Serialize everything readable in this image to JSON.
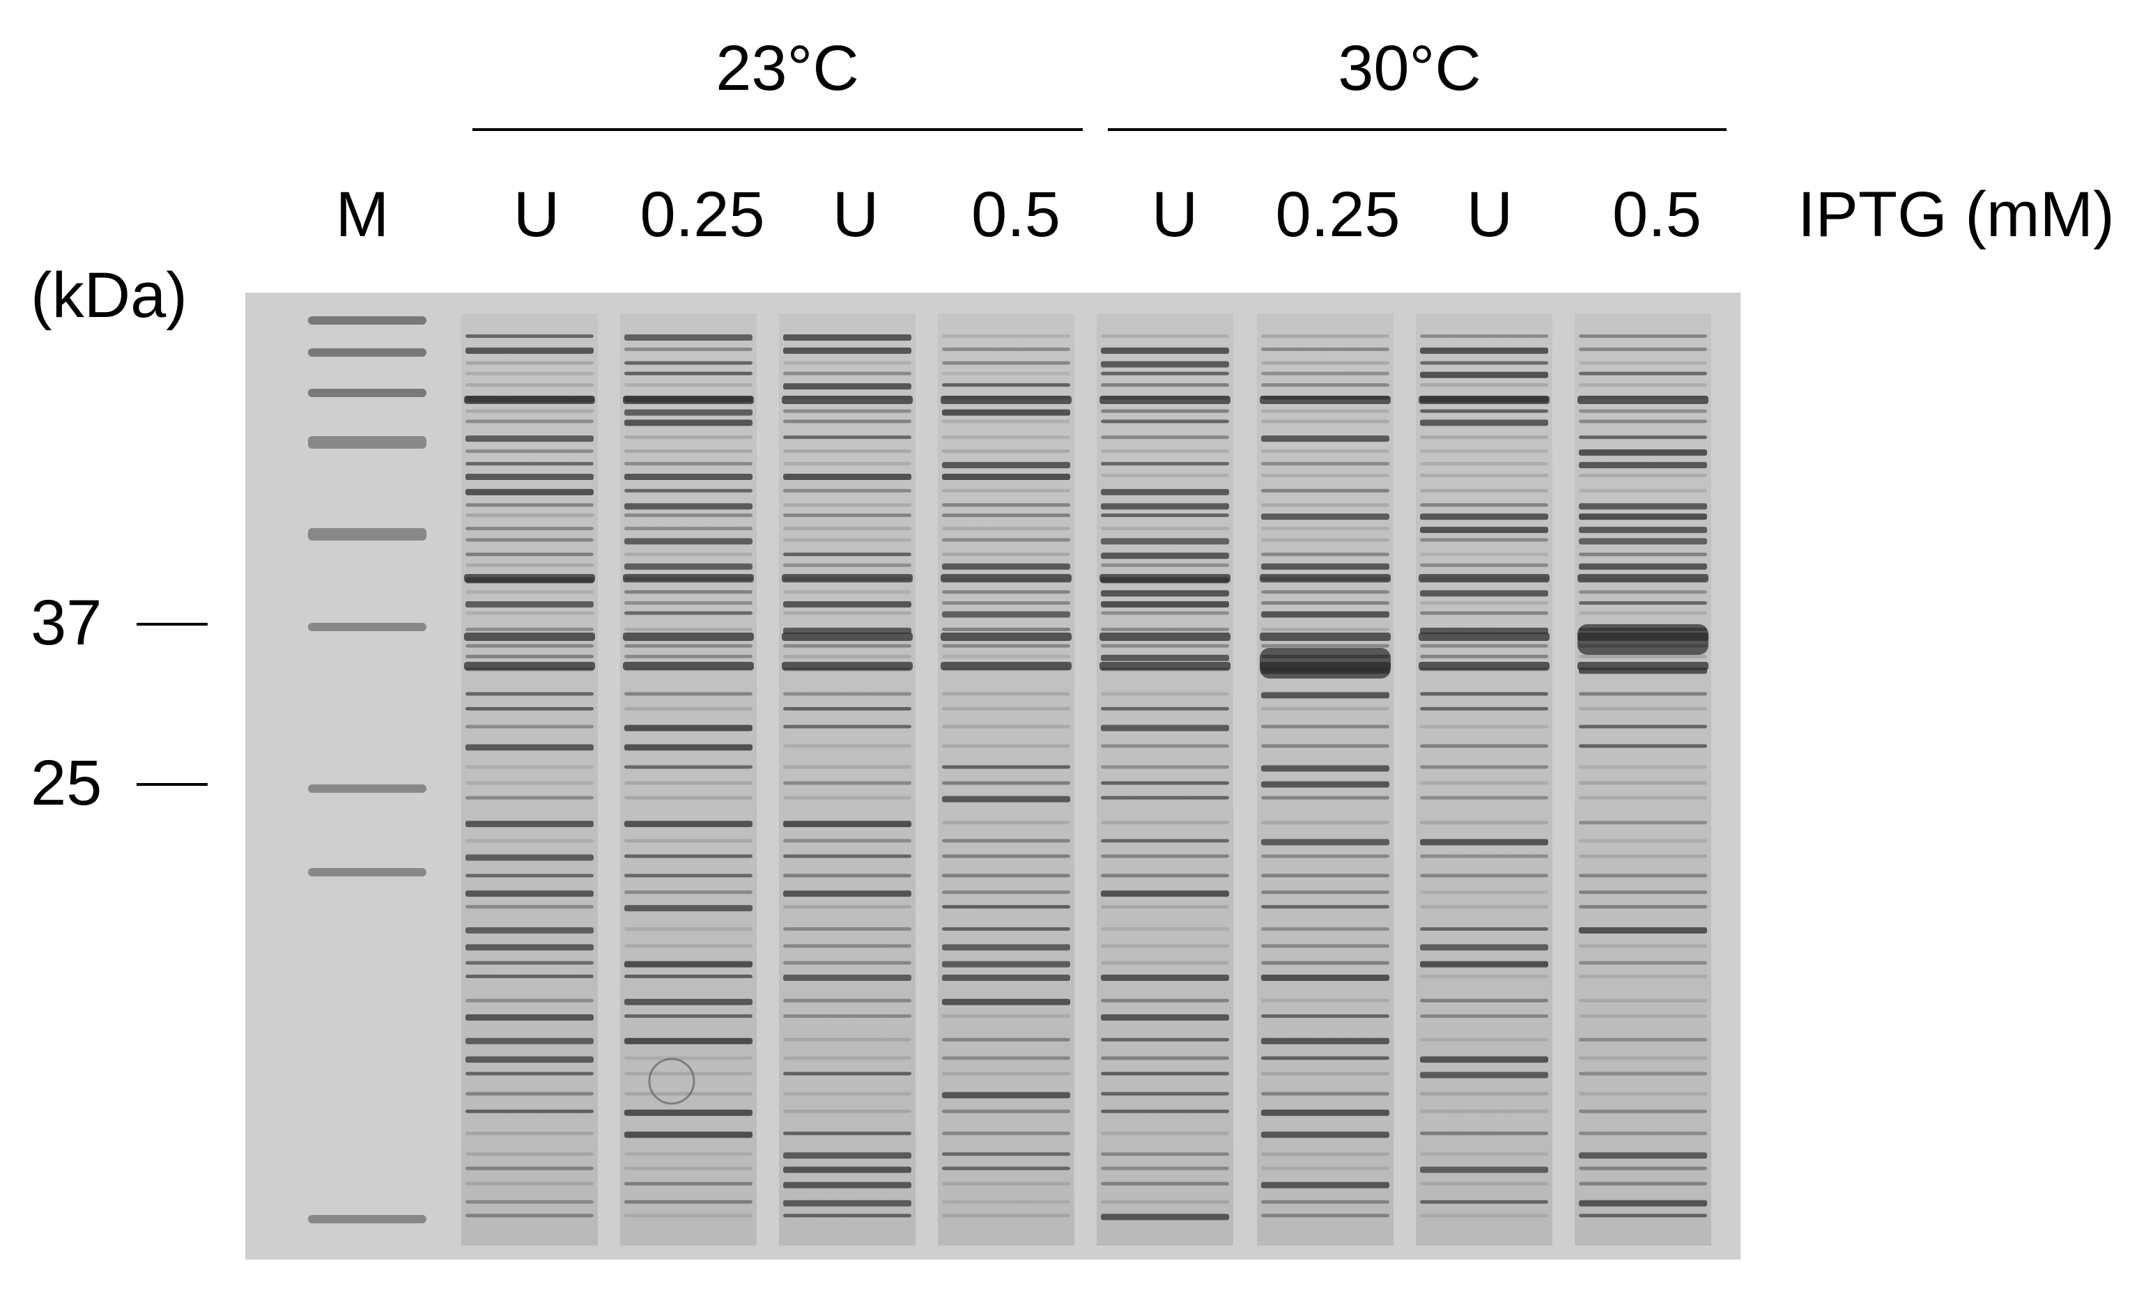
{
  "figure": {
    "unit_label": "(kDa)",
    "axis_label": "IPTG (mM)",
    "marker_lane_label": "M",
    "temperature_groups": [
      {
        "label": "23°C",
        "lanes": [
          "U",
          "0.25",
          "U",
          "0.5"
        ]
      },
      {
        "label": "30°C",
        "lanes": [
          "U",
          "0.25",
          "U",
          "0.5"
        ]
      }
    ],
    "mw_markers": [
      {
        "label": "37",
        "kDa": 37
      },
      {
        "label": "25",
        "kDa": 25
      }
    ],
    "colors": {
      "gel_background": "#cfcfcf",
      "band_dark": "#3a3a3a",
      "band_light": "#8c8c8c"
    }
  }
}
